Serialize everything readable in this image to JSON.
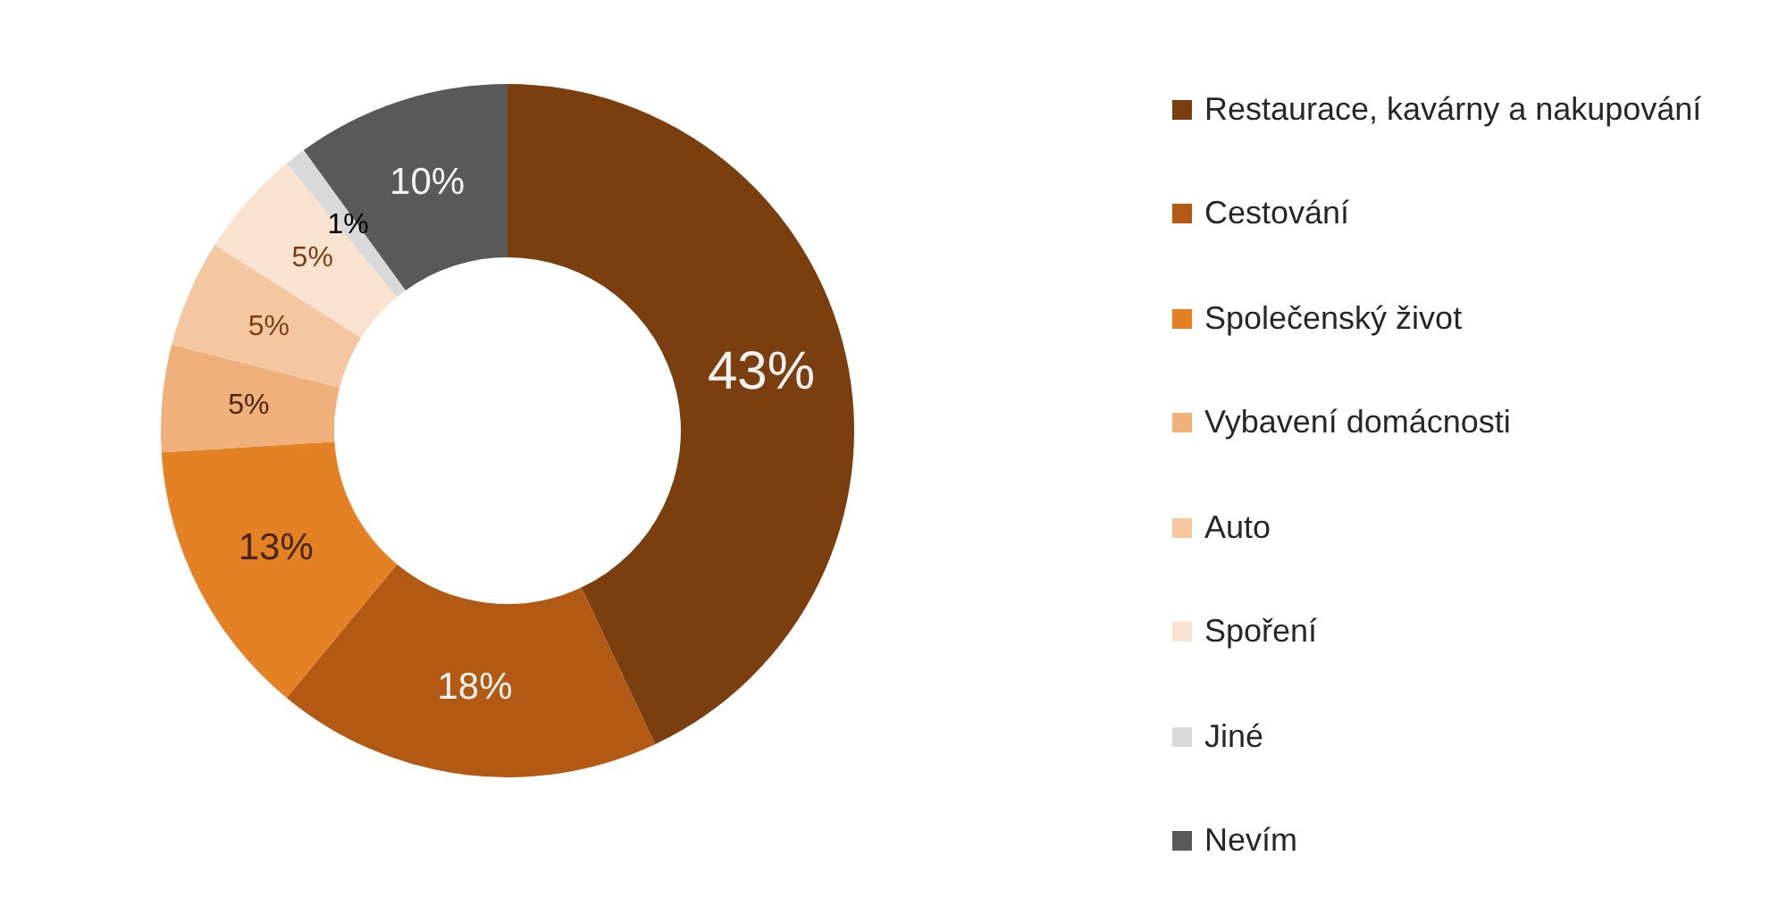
{
  "chart_data": {
    "type": "donut",
    "categories": [
      "Restaurace, kavárny a nakupování",
      "Cestování",
      "Společenský život",
      "Vybavení domácnosti",
      "Auto",
      "Spoření",
      "Jiné",
      "Nevím"
    ],
    "values": [
      43,
      18,
      13,
      5,
      5,
      5,
      1,
      10
    ],
    "colors": [
      "#7a3e0f",
      "#b25913",
      "#e58125",
      "#f0b07b",
      "#f5c7a1",
      "#fae2d0",
      "#d9d9d9",
      "#595959"
    ],
    "value_labels": [
      "43%",
      "18%",
      "13%",
      "5%",
      "5%",
      "5%",
      "1%",
      "10%"
    ],
    "legend": "right"
  }
}
